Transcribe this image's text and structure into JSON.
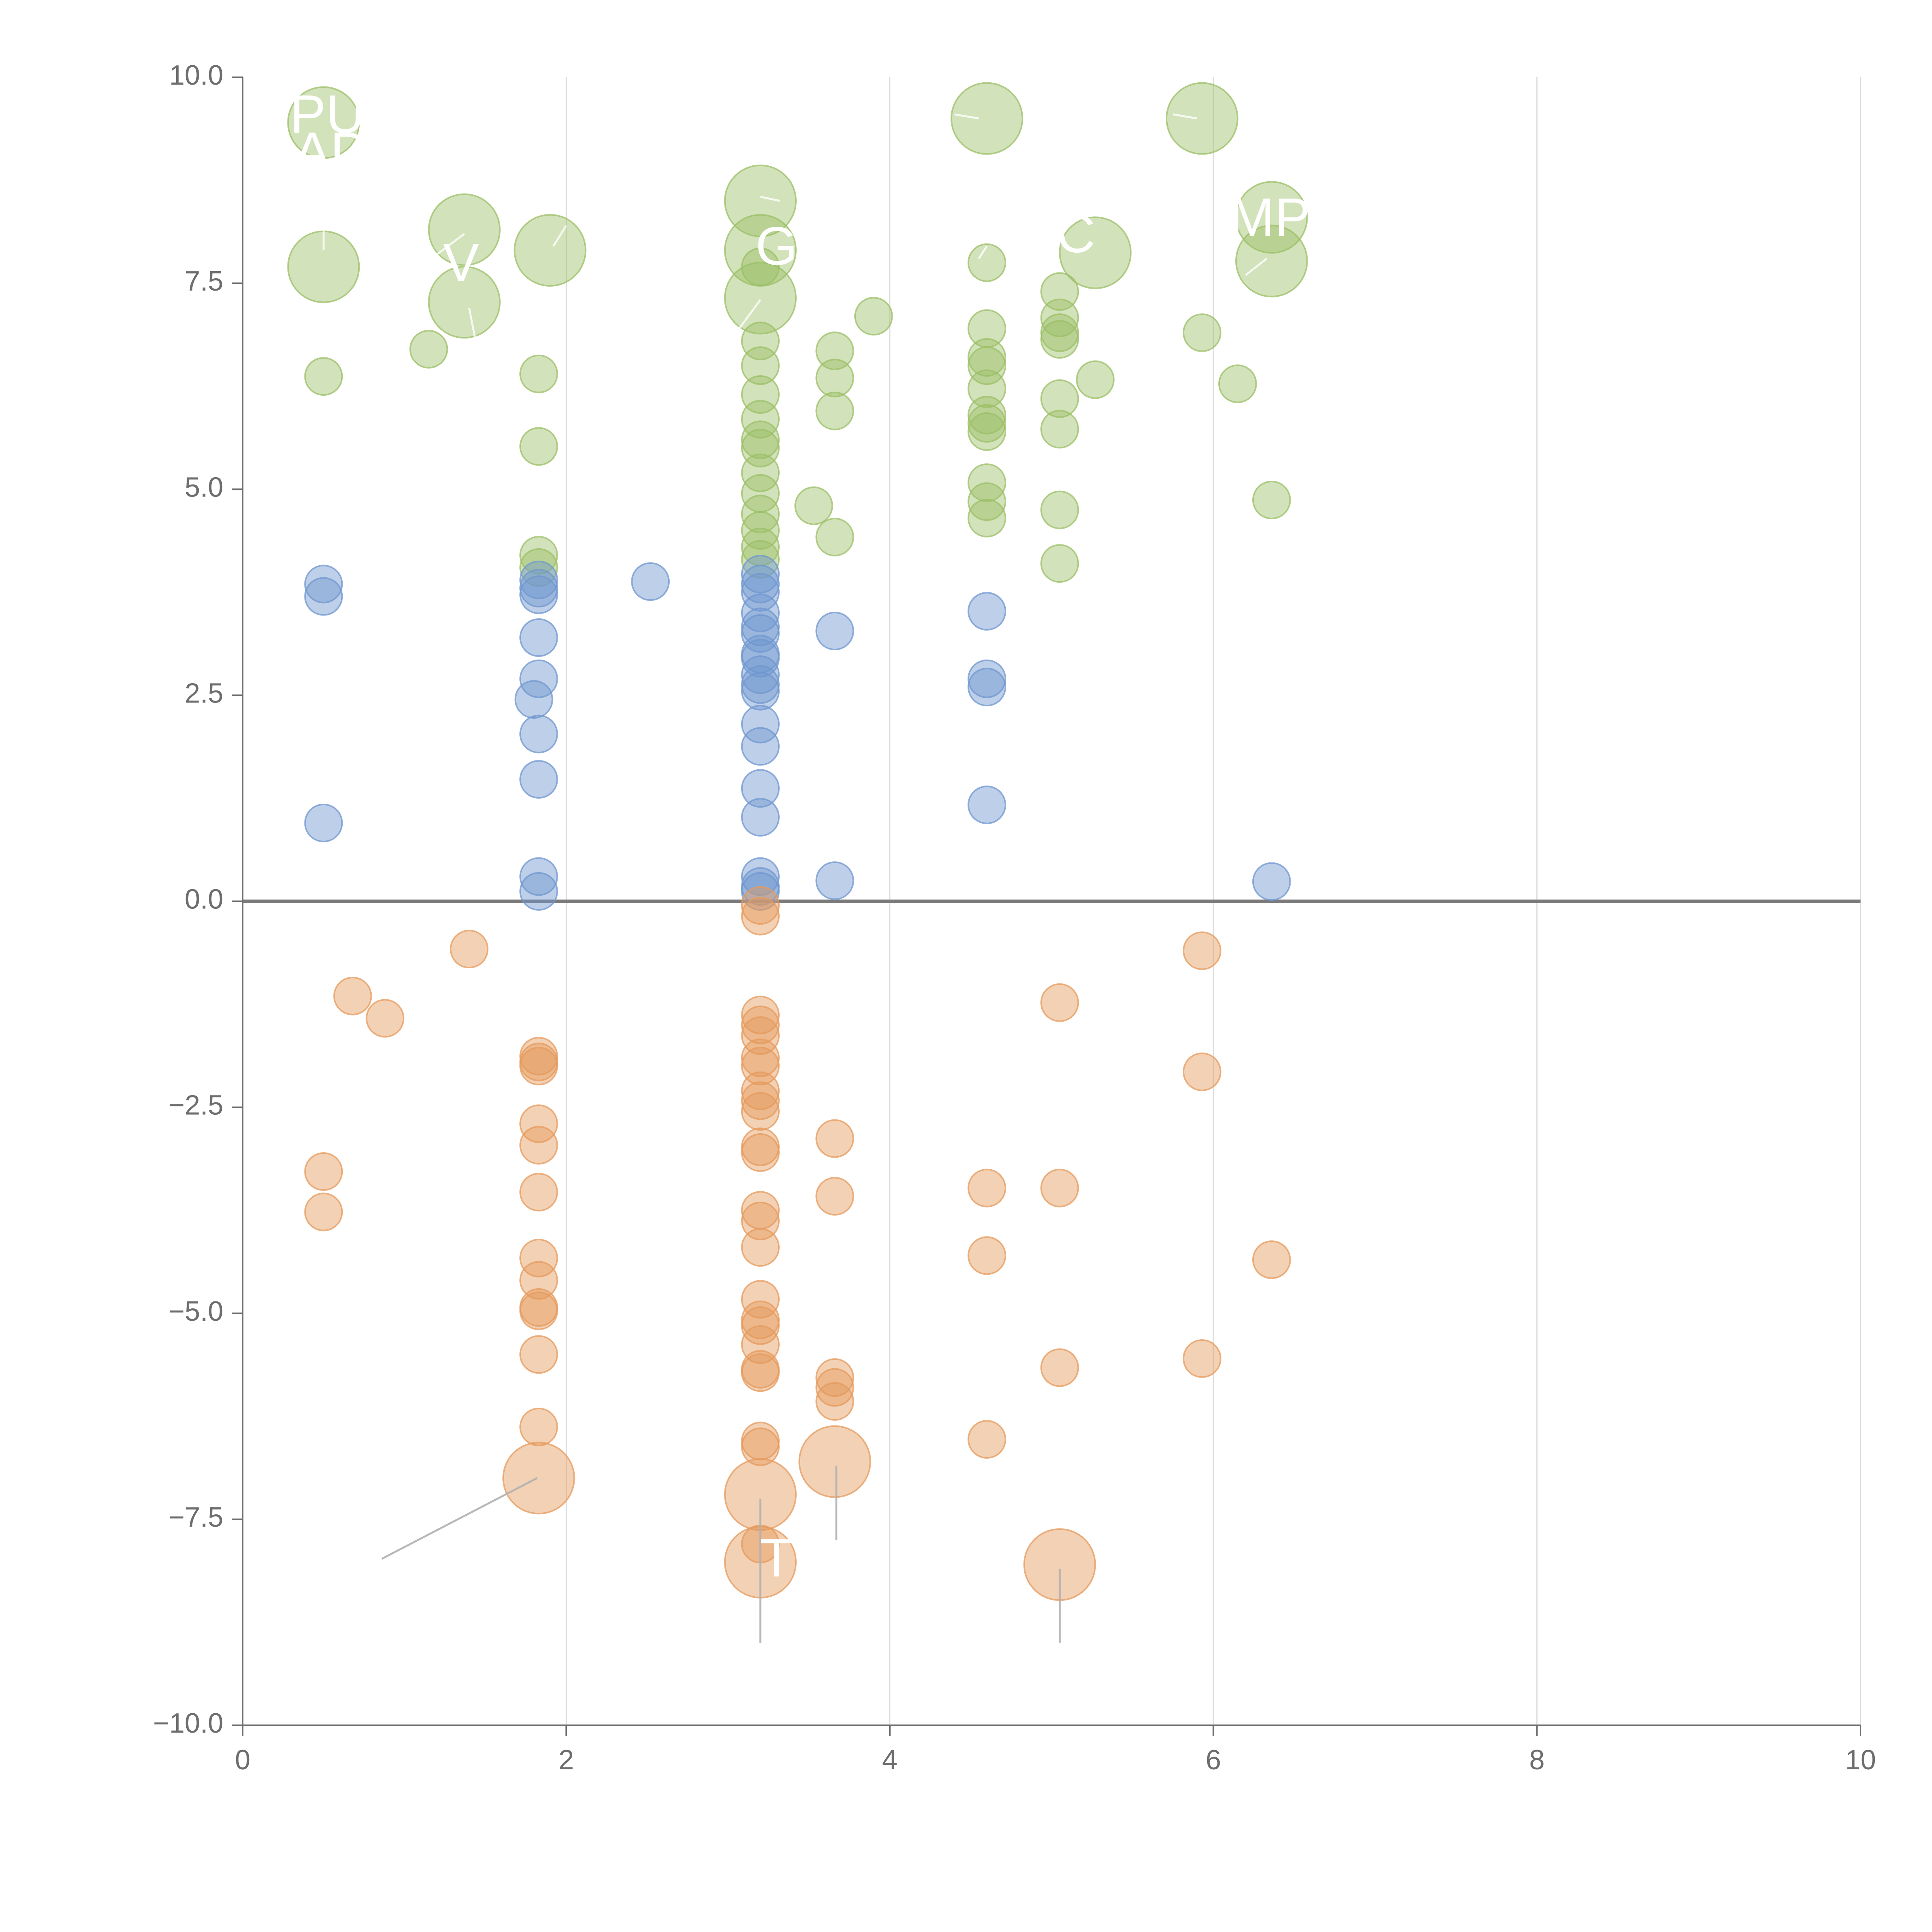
{
  "chart_data": {
    "type": "scatter",
    "title": "",
    "xlabel": "",
    "ylabel": "",
    "xlim": [
      0,
      10
    ],
    "ylim": [
      -10,
      10
    ],
    "x_ticks": [
      "0",
      "2",
      "4",
      "6",
      "8",
      "10"
    ],
    "y_ticks": [
      "10.0",
      "7.5",
      "5.0",
      "2.5",
      "0.0",
      "−2.5",
      "−5.0",
      "−7.5",
      "−10.0"
    ],
    "x_tick_values": [
      0,
      2,
      4,
      6,
      8,
      10
    ],
    "y_tick_values": [
      10,
      7.5,
      5,
      2.5,
      0,
      -2.5,
      -5,
      -7.5,
      -10
    ],
    "grid": {
      "vertical": true,
      "horizontal": false
    },
    "zero_line": true,
    "legend": "none",
    "colors": {
      "green": "#9bbf66",
      "blue": "#6f96cf",
      "orange": "#e59a5c",
      "axis": "#6d6d6d",
      "grid": "#dcdcdc",
      "label": "#ffffff",
      "leader": "#b0b0b0"
    },
    "series": [
      {
        "color": "green",
        "points": [
          [
            0.5,
            9.45,
            1
          ],
          [
            4.6,
            9.5,
            1
          ],
          [
            5.93,
            9.5,
            1
          ],
          [
            3.2,
            8.5,
            1
          ],
          [
            1.37,
            8.15,
            1
          ],
          [
            6.36,
            8.3,
            1
          ],
          [
            1.9,
            7.9,
            1
          ],
          [
            3.2,
            7.9,
            1
          ],
          [
            5.27,
            7.87,
            1
          ],
          [
            0.5,
            7.7,
            1
          ],
          [
            6.36,
            7.77,
            1
          ],
          [
            3.2,
            7.32,
            1
          ],
          [
            1.37,
            7.27,
            1
          ],
          [
            3.9,
            7.1,
            0
          ],
          [
            1.15,
            6.7,
            0
          ],
          [
            3.66,
            6.68,
            0
          ],
          [
            0.5,
            6.37,
            0
          ],
          [
            1.83,
            6.4,
            0
          ],
          [
            3.66,
            6.35,
            0
          ],
          [
            3.66,
            5.95,
            0
          ],
          [
            1.83,
            5.52,
            0
          ],
          [
            3.2,
            6.8,
            0
          ],
          [
            3.2,
            6.5,
            0
          ],
          [
            3.2,
            6.15,
            0
          ],
          [
            3.2,
            5.85,
            0
          ],
          [
            3.2,
            5.6,
            0
          ],
          [
            3.2,
            5.5,
            0
          ],
          [
            3.2,
            5.2,
            0
          ],
          [
            3.2,
            4.95,
            0
          ],
          [
            3.2,
            4.7,
            0
          ],
          [
            3.2,
            4.5,
            0
          ],
          [
            3.2,
            4.3,
            0
          ],
          [
            3.2,
            4.15,
            0
          ],
          [
            3.2,
            7.7,
            0
          ],
          [
            3.53,
            4.8,
            0
          ],
          [
            3.66,
            4.42,
            0
          ],
          [
            4.6,
            7.75,
            0
          ],
          [
            4.6,
            6.95,
            0
          ],
          [
            4.6,
            6.6,
            0
          ],
          [
            4.6,
            6.5,
            0
          ],
          [
            4.6,
            6.22,
            0
          ],
          [
            4.6,
            5.9,
            0
          ],
          [
            4.6,
            5.8,
            0
          ],
          [
            4.6,
            5.7,
            0
          ],
          [
            4.6,
            5.08,
            0
          ],
          [
            4.6,
            4.85,
            0
          ],
          [
            4.6,
            4.65,
            0
          ],
          [
            5.05,
            7.4,
            0
          ],
          [
            5.05,
            7.08,
            0
          ],
          [
            5.05,
            6.9,
            0
          ],
          [
            5.05,
            6.82,
            0
          ],
          [
            5.05,
            6.1,
            0
          ],
          [
            5.05,
            5.73,
            0
          ],
          [
            5.05,
            4.75,
            0
          ],
          [
            5.05,
            4.1,
            0
          ],
          [
            5.27,
            6.33,
            0
          ],
          [
            5.93,
            6.9,
            0
          ],
          [
            6.15,
            6.28,
            0
          ],
          [
            6.36,
            4.87,
            0
          ],
          [
            1.83,
            4.2,
            0
          ],
          [
            1.83,
            4.05,
            0
          ]
        ]
      },
      {
        "color": "blue",
        "points": [
          [
            0.5,
            3.85,
            0
          ],
          [
            0.5,
            3.7,
            0
          ],
          [
            0.5,
            0.95,
            0
          ],
          [
            1.83,
            3.9,
            0
          ],
          [
            1.83,
            3.8,
            0
          ],
          [
            1.83,
            3.72,
            0
          ],
          [
            1.83,
            3.2,
            0
          ],
          [
            1.83,
            2.7,
            0
          ],
          [
            1.8,
            2.45,
            0
          ],
          [
            1.83,
            2.03,
            0
          ],
          [
            1.83,
            1.48,
            0
          ],
          [
            1.83,
            0.3,
            0
          ],
          [
            1.83,
            0.12,
            0
          ],
          [
            2.52,
            3.88,
            0
          ],
          [
            3.2,
            3.97,
            0
          ],
          [
            3.2,
            3.85,
            0
          ],
          [
            3.2,
            3.75,
            0
          ],
          [
            3.2,
            3.5,
            0
          ],
          [
            3.2,
            3.33,
            0
          ],
          [
            3.2,
            3.25,
            0
          ],
          [
            3.2,
            3.0,
            0
          ],
          [
            3.2,
            2.95,
            0
          ],
          [
            3.2,
            2.75,
            0
          ],
          [
            3.2,
            2.63,
            0
          ],
          [
            3.2,
            2.55,
            0
          ],
          [
            3.2,
            2.15,
            0
          ],
          [
            3.2,
            1.88,
            0
          ],
          [
            3.2,
            1.37,
            0
          ],
          [
            3.2,
            1.02,
            0
          ],
          [
            3.2,
            0.3,
            0
          ],
          [
            3.2,
            0.18,
            0
          ],
          [
            3.2,
            0.12,
            0
          ],
          [
            3.66,
            3.28,
            0
          ],
          [
            3.66,
            0.25,
            0
          ],
          [
            4.6,
            3.52,
            0
          ],
          [
            4.6,
            2.7,
            0
          ],
          [
            4.6,
            2.6,
            0
          ],
          [
            4.6,
            1.17,
            0
          ],
          [
            6.36,
            0.24,
            0
          ]
        ]
      },
      {
        "color": "orange",
        "points": [
          [
            1.83,
            -7.0,
            1
          ],
          [
            3.2,
            -7.2,
            1
          ],
          [
            3.66,
            -6.8,
            1
          ],
          [
            3.2,
            -8.02,
            1
          ],
          [
            5.05,
            -8.05,
            1
          ],
          [
            1.4,
            -0.58,
            0
          ],
          [
            0.68,
            -1.15,
            0
          ],
          [
            0.88,
            -1.42,
            0
          ],
          [
            0.5,
            -3.28,
            0
          ],
          [
            0.5,
            -3.77,
            0
          ],
          [
            1.83,
            -1.88,
            0
          ],
          [
            1.83,
            -1.95,
            0
          ],
          [
            1.83,
            -2.0,
            0
          ],
          [
            1.83,
            -2.7,
            0
          ],
          [
            1.83,
            -2.96,
            0
          ],
          [
            1.83,
            -3.53,
            0
          ],
          [
            1.83,
            -4.33,
            0
          ],
          [
            1.83,
            -4.6,
            0
          ],
          [
            1.83,
            -4.93,
            0
          ],
          [
            1.83,
            -4.97,
            0
          ],
          [
            1.83,
            -5.5,
            0
          ],
          [
            1.83,
            -6.38,
            0
          ],
          [
            3.2,
            -0.05,
            0
          ],
          [
            3.2,
            -0.18,
            0
          ],
          [
            3.2,
            -1.38,
            0
          ],
          [
            3.2,
            -1.5,
            0
          ],
          [
            3.2,
            -1.63,
            0
          ],
          [
            3.2,
            -1.9,
            0
          ],
          [
            3.2,
            -2.0,
            0
          ],
          [
            3.2,
            -2.3,
            0
          ],
          [
            3.2,
            -2.42,
            0
          ],
          [
            3.2,
            -2.55,
            0
          ],
          [
            3.2,
            -2.98,
            0
          ],
          [
            3.2,
            -3.05,
            0
          ],
          [
            3.2,
            -3.75,
            0
          ],
          [
            3.2,
            -3.88,
            0
          ],
          [
            3.2,
            -4.2,
            0
          ],
          [
            3.2,
            -4.83,
            0
          ],
          [
            3.2,
            -5.08,
            0
          ],
          [
            3.2,
            -5.15,
            0
          ],
          [
            3.2,
            -5.38,
            0
          ],
          [
            3.2,
            -5.68,
            0
          ],
          [
            3.2,
            -5.72,
            0
          ],
          [
            3.2,
            -6.55,
            0
          ],
          [
            3.2,
            -6.62,
            0
          ],
          [
            3.2,
            -7.8,
            0
          ],
          [
            3.66,
            -2.88,
            0
          ],
          [
            3.66,
            -3.58,
            0
          ],
          [
            3.66,
            -5.78,
            0
          ],
          [
            3.66,
            -5.9,
            0
          ],
          [
            3.66,
            -6.07,
            0
          ],
          [
            4.6,
            -3.48,
            0
          ],
          [
            4.6,
            -4.3,
            0
          ],
          [
            4.6,
            -6.53,
            0
          ],
          [
            5.05,
            -1.23,
            0
          ],
          [
            5.05,
            -3.48,
            0
          ],
          [
            5.05,
            -5.66,
            0
          ],
          [
            5.93,
            -0.6,
            0
          ],
          [
            5.93,
            -2.07,
            0
          ],
          [
            5.93,
            -5.55,
            0
          ],
          [
            6.36,
            -4.35,
            0
          ]
        ]
      }
    ],
    "text_labels": [
      {
        "text": "PUI",
        "x": 0.57,
        "y": 9.5
      },
      {
        "text": "AD",
        "x": 0.55,
        "y": 9.05
      },
      {
        "text": "V",
        "x": 1.35,
        "y": 7.7
      },
      {
        "text": "G",
        "x": 3.3,
        "y": 7.9
      },
      {
        "text": "C",
        "x": 5.15,
        "y": 8.05
      },
      {
        "text": "MP",
        "x": 6.35,
        "y": 8.25
      },
      {
        "text": "T",
        "x": 3.3,
        "y": -8.02
      }
    ],
    "leader_lines": [
      [
        [
          1.82,
          -7.0
        ],
        [
          0.86,
          -7.98
        ]
      ],
      [
        [
          3.2,
          -7.25
        ],
        [
          3.2,
          -9.0
        ]
      ],
      [
        [
          3.67,
          -6.85
        ],
        [
          3.67,
          -7.75
        ]
      ],
      [
        [
          5.05,
          -8.1
        ],
        [
          5.05,
          -9.0
        ]
      ],
      [
        [
          0.5,
          7.9
        ],
        [
          0.5,
          8.5
        ]
      ],
      [
        [
          1.37,
          8.1
        ],
        [
          1.2,
          7.85
        ]
      ],
      [
        [
          1.4,
          7.2
        ],
        [
          1.45,
          6.7
        ]
      ],
      [
        [
          1.92,
          7.95
        ],
        [
          2.0,
          8.2
        ]
      ],
      [
        [
          3.2,
          7.3
        ],
        [
          3.05,
          6.9
        ]
      ],
      [
        [
          3.32,
          8.5
        ],
        [
          3.2,
          8.55
        ]
      ],
      [
        [
          4.55,
          9.5
        ],
        [
          4.4,
          9.55
        ]
      ],
      [
        [
          5.9,
          9.5
        ],
        [
          5.75,
          9.55
        ]
      ],
      [
        [
          6.33,
          7.8
        ],
        [
          6.2,
          7.6
        ]
      ],
      [
        [
          4.6,
          7.95
        ],
        [
          4.55,
          7.8
        ]
      ]
    ]
  }
}
